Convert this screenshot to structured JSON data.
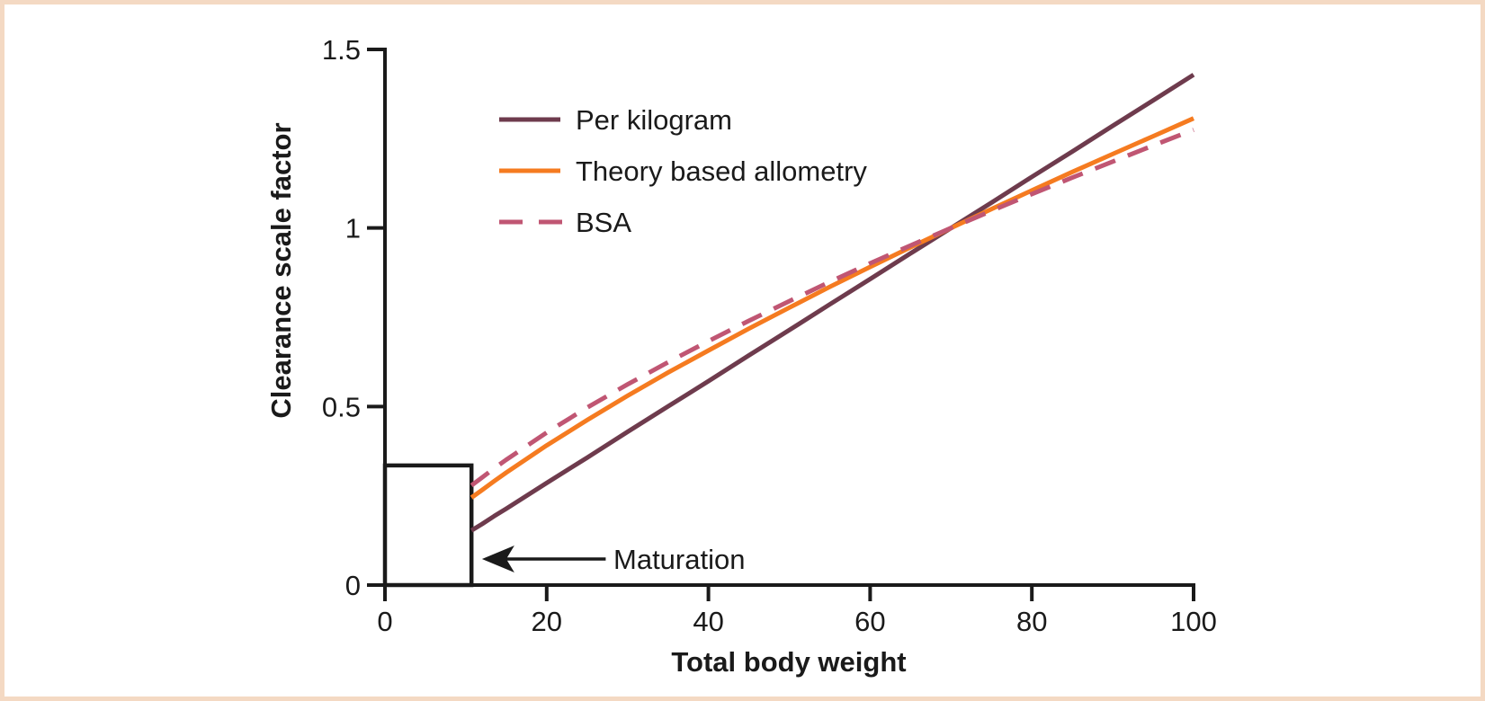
{
  "figure": {
    "border_color": "#f4d9c3",
    "background_color": "#ffffff"
  },
  "chart_data": {
    "type": "line",
    "title": "",
    "xlabel": "Total body weight",
    "ylabel": "Clearance scale factor",
    "xlim": [
      0,
      100
    ],
    "ylim": [
      0,
      1.5
    ],
    "x_ticks": [
      0,
      20,
      40,
      60,
      80,
      100
    ],
    "x_tick_labels": [
      "0",
      "20",
      "40",
      "60",
      "80",
      "100"
    ],
    "y_ticks": [
      0,
      0.5,
      1,
      1.5
    ],
    "y_tick_labels": [
      "0",
      "0.5",
      "1",
      "1.5"
    ],
    "grid": false,
    "legend_position": "upper-left-inside",
    "axis_color": "#1a1a1a",
    "x": [
      10.7,
      12,
      13.5,
      15,
      20,
      25,
      30,
      35,
      40,
      45,
      50,
      55,
      60,
      65,
      70,
      75,
      80,
      85,
      90,
      95,
      100
    ],
    "series": [
      {
        "name": "Per kilogram",
        "color": "#6e3b4d",
        "style": "solid",
        "values": [
          0.153,
          0.171,
          0.193,
          0.214,
          0.286,
          0.357,
          0.429,
          0.5,
          0.571,
          0.643,
          0.714,
          0.786,
          0.857,
          0.929,
          1.0,
          1.071,
          1.143,
          1.214,
          1.286,
          1.357,
          1.429
        ]
      },
      {
        "name": "Theory based allometry",
        "color": "#f57b20",
        "style": "solid",
        "values": [
          0.245,
          0.266,
          0.291,
          0.315,
          0.391,
          0.462,
          0.53,
          0.595,
          0.657,
          0.718,
          0.777,
          0.835,
          0.891,
          0.946,
          1.0,
          1.053,
          1.105,
          1.157,
          1.207,
          1.257,
          1.307
        ]
      },
      {
        "name": "BSA",
        "color": "#c05673",
        "style": "dashed",
        "values": [
          0.279,
          0.301,
          0.327,
          0.351,
          0.427,
          0.497,
          0.562,
          0.624,
          0.683,
          0.74,
          0.795,
          0.849,
          0.901,
          0.951,
          1.0,
          1.048,
          1.095,
          1.141,
          1.186,
          1.231,
          1.275
        ]
      }
    ],
    "annotations": {
      "maturation_box": {
        "x0": 0,
        "x1": 10.7,
        "y0": 0,
        "y1": 0.335
      },
      "arrow": {
        "x_tip": 12,
        "x_tail": 27.3,
        "y": 0.073
      },
      "arrow_label": "Maturation",
      "crossover_point": {
        "x": 70,
        "y": 1.0
      }
    }
  }
}
